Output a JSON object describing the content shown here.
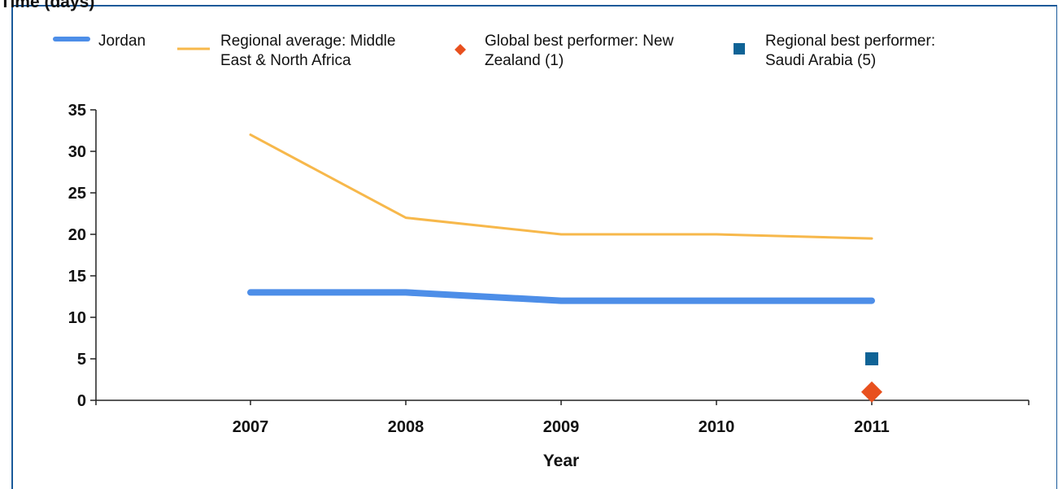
{
  "chart_data": {
    "type": "line",
    "ylabel": "Time (days)",
    "xlabel": "Year",
    "x": [
      "2007",
      "2008",
      "2009",
      "2010",
      "2011"
    ],
    "ylim": [
      0,
      35
    ],
    "yticks": [
      0,
      5,
      10,
      15,
      20,
      25,
      30,
      35
    ],
    "grid": false,
    "legend_position": "top",
    "series": [
      {
        "name": "Jordan",
        "kind": "line",
        "color": "#4d8ee8",
        "values": [
          13,
          13,
          12,
          12,
          12
        ]
      },
      {
        "name": "Regional average: Middle East & North Africa",
        "kind": "line",
        "color": "#f7b84b",
        "values": [
          32,
          22,
          20,
          20,
          19.5
        ]
      },
      {
        "name": "Global best performer: New Zealand (1)",
        "kind": "marker",
        "marker": "diamond",
        "color": "#e8501e",
        "points": [
          {
            "x": "2011",
            "y": 1
          }
        ]
      },
      {
        "name": "Regional best performer: Saudi Arabia (5)",
        "kind": "marker",
        "marker": "square",
        "color": "#0f6396",
        "points": [
          {
            "x": "2011",
            "y": 5
          }
        ]
      }
    ]
  }
}
